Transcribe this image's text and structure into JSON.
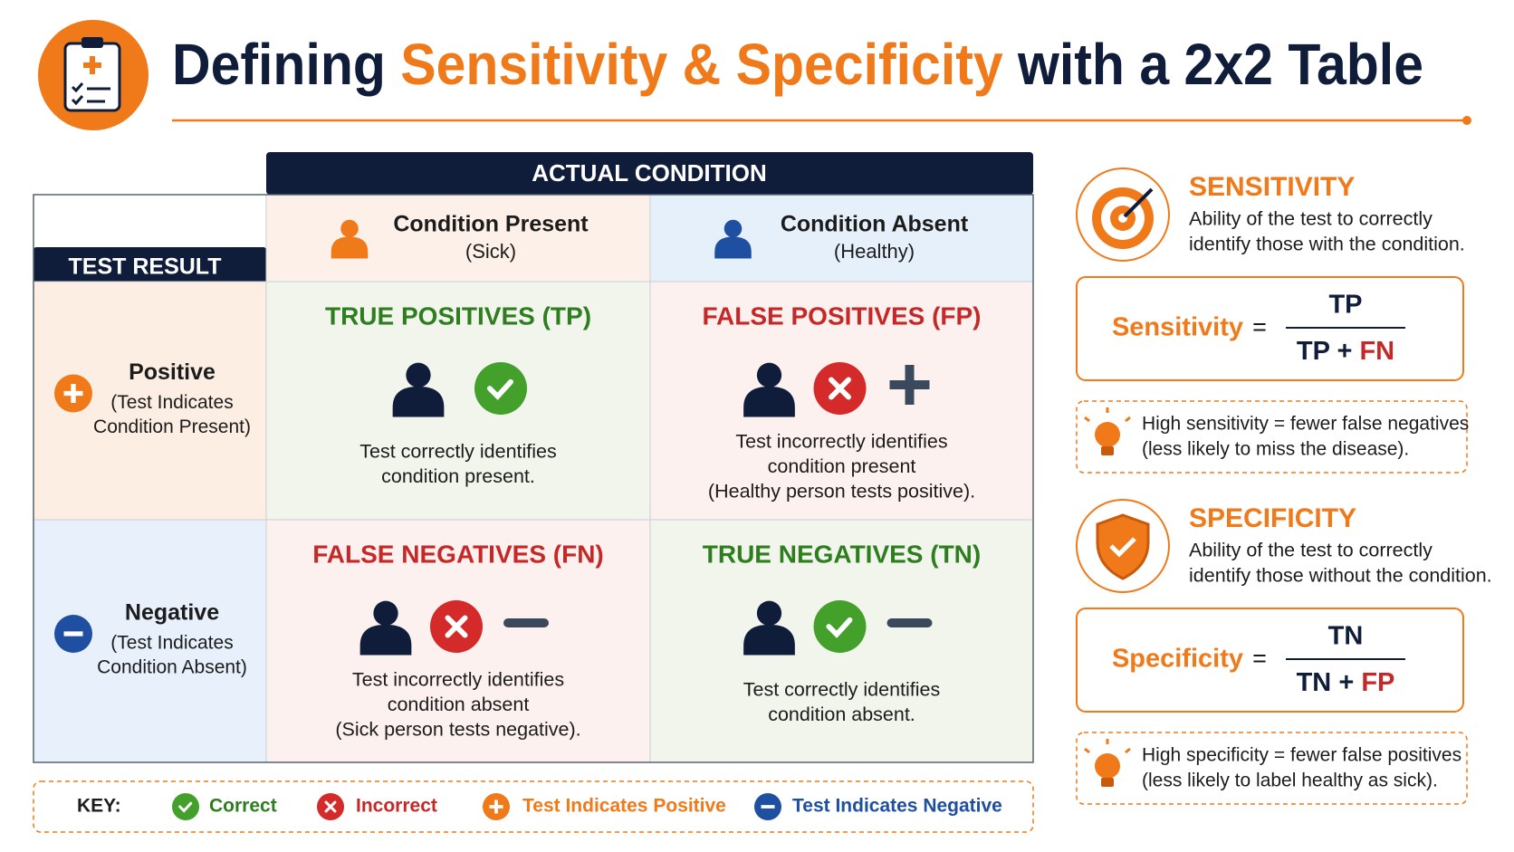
{
  "header": {
    "title_parts": [
      "Defining",
      "Sensitivity & Specificity",
      "with a 2x2 Table"
    ]
  },
  "table": {
    "column_header": "ACTUAL CONDITION",
    "row_header": "TEST RESULT",
    "columns": [
      {
        "label": "Condition Present",
        "sub": "(Sick)"
      },
      {
        "label": "Condition Absent",
        "sub": "(Healthy)"
      }
    ],
    "rows": [
      {
        "label": "Positive",
        "sub": [
          "(Test Indicates",
          "Condition Present)"
        ]
      },
      {
        "label": "Negative",
        "sub": [
          "(Test Indicates",
          "Condition Absent)"
        ]
      }
    ],
    "cells": [
      [
        {
          "title": "TRUE POSITIVES (TP)",
          "lines": [
            "Test correctly identifies",
            "condition present."
          ]
        },
        {
          "title": "FALSE POSITIVES (FP)",
          "lines": [
            "Test incorrectly identifies",
            "condition present",
            "(Healthy person tests positive)."
          ]
        }
      ],
      [
        {
          "title": "FALSE NEGATIVES (FN)",
          "lines": [
            "Test incorrectly identifies",
            "condition absent",
            "(Sick person tests negative)."
          ]
        },
        {
          "title": "TRUE NEGATIVES (TN)",
          "lines": [
            "Test correctly identifies",
            "condition absent."
          ]
        }
      ]
    ]
  },
  "key": {
    "label": "KEY:",
    "items": [
      "Correct",
      "Incorrect",
      "Test Indicates Positive",
      "Test Indicates Negative"
    ]
  },
  "sensitivity": {
    "title": "SENSITIVITY",
    "description": [
      "Ability of the test to correctly",
      "identify those with the condition."
    ],
    "formula": {
      "name": "Sensitivity",
      "equals": "=",
      "numerator": "TP",
      "denominator": [
        "TP",
        "+",
        "FN"
      ]
    },
    "note": [
      "High sensitivity = fewer false negatives",
      "(less likely to miss the disease)."
    ]
  },
  "specificity": {
    "title": "SPECIFICITY",
    "description": [
      "Ability of the test to correctly",
      "identify those without the condition."
    ],
    "formula": {
      "name": "Specificity",
      "equals": "=",
      "numerator": "TN",
      "denominator": [
        "TN",
        "+",
        "FP"
      ]
    },
    "note": [
      "High specificity = fewer false positives",
      "(less likely to label healthy as sick)."
    ]
  }
}
